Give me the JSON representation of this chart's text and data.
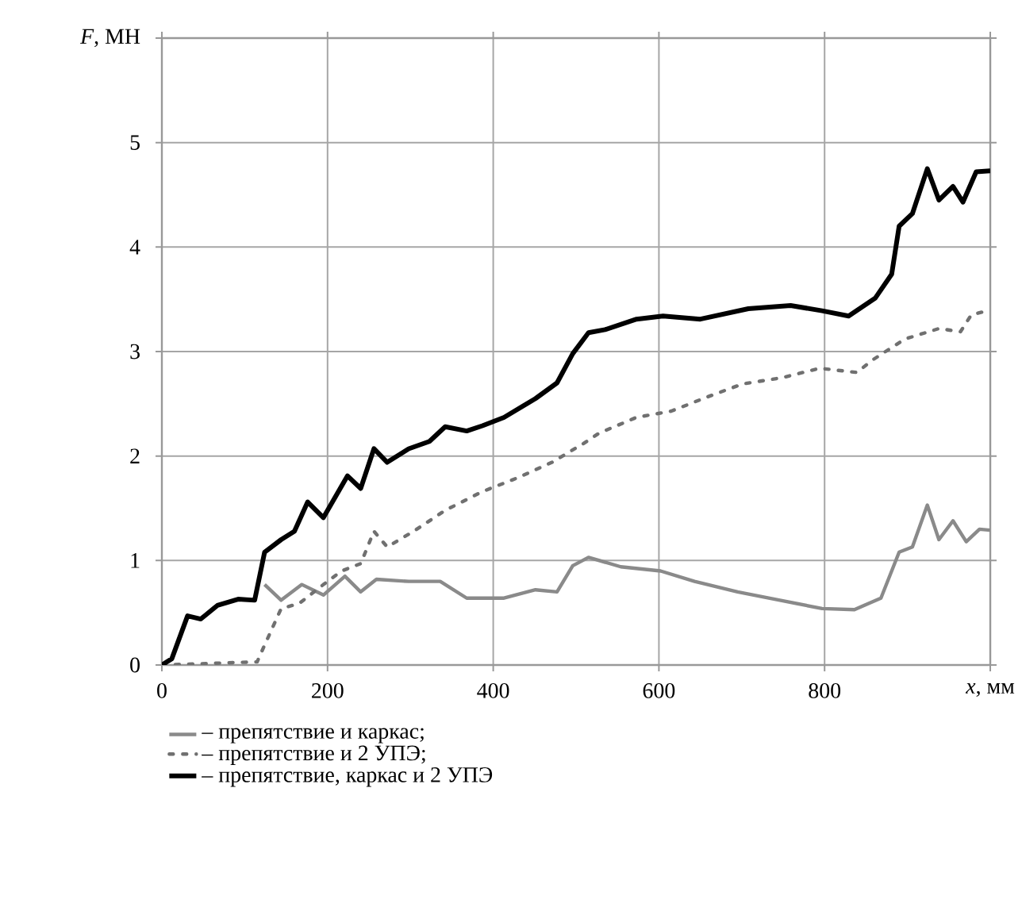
{
  "chart_data": {
    "type": "line",
    "xlim": [
      0,
      1000
    ],
    "ylim": [
      0,
      6
    ],
    "xticks": [
      0,
      200,
      400,
      600,
      800,
      {
        "value": 1000,
        "label": "*x*, мм"
      }
    ],
    "yticks": [
      0,
      1,
      2,
      3,
      4,
      5,
      {
        "value": 6,
        "label": "*F*, МН"
      }
    ],
    "grid": true,
    "legend": "bottom",
    "marker": "none",
    "series": [
      {
        "name": "– препятствие и каркас;",
        "color": "#8a8a8a",
        "line_style": "solid",
        "x": [
          124,
          144,
          169,
          195,
          221,
          240,
          259,
          298,
          336,
          368,
          413,
          451,
          477,
          496,
          515,
          554,
          602,
          643,
          695,
          746,
          797,
          836,
          868,
          890,
          906,
          924,
          938,
          955,
          971,
          987,
          1000
        ],
        "values": [
          0.77,
          0.62,
          0.77,
          0.67,
          0.85,
          0.7,
          0.82,
          0.8,
          0.8,
          0.64,
          0.64,
          0.72,
          0.7,
          0.95,
          1.03,
          0.94,
          0.9,
          0.8,
          0.7,
          0.62,
          0.54,
          0.53,
          0.64,
          1.08,
          1.13,
          1.53,
          1.2,
          1.38,
          1.18,
          1.3,
          1.29
        ]
      },
      {
        "name": "– препятствие и 2 УПЭ;",
        "color": "#707070",
        "line_style": "dotted",
        "x": [
          0,
          115,
          124,
          144,
          166,
          195,
          217,
          240,
          256,
          272,
          304,
          342,
          387,
          429,
          471,
          509,
          528,
          573,
          615,
          660,
          701,
          749,
          794,
          839,
          858,
          897,
          938,
          964,
          977,
          996
        ],
        "values": [
          0,
          0.03,
          0.19,
          0.54,
          0.59,
          0.77,
          0.9,
          0.97,
          1.28,
          1.13,
          1.28,
          1.48,
          1.66,
          1.79,
          1.94,
          2.12,
          2.22,
          2.37,
          2.43,
          2.57,
          2.69,
          2.75,
          2.84,
          2.8,
          2.92,
          3.12,
          3.22,
          3.19,
          3.35,
          3.39
        ]
      },
      {
        "name": "– препятствие, каркас и 2 УПЭ",
        "color": "#000000",
        "line_style": "solid",
        "x": [
          0,
          12,
          31,
          47,
          67,
          92,
          112,
          124,
          144,
          160,
          176,
          195,
          224,
          240,
          256,
          272,
          298,
          323,
          342,
          368,
          387,
          413,
          451,
          477,
          496,
          515,
          535,
          573,
          605,
          650,
          708,
          759,
          797,
          829,
          861,
          881,
          890,
          906,
          924,
          938,
          955,
          967,
          983,
          1000
        ],
        "values": [
          0,
          0.06,
          0.47,
          0.44,
          0.57,
          0.63,
          0.62,
          1.08,
          1.2,
          1.28,
          1.56,
          1.41,
          1.81,
          1.69,
          2.07,
          1.94,
          2.07,
          2.14,
          2.28,
          2.24,
          2.29,
          2.37,
          2.55,
          2.7,
          2.98,
          3.18,
          3.21,
          3.31,
          3.34,
          3.31,
          3.41,
          3.44,
          3.39,
          3.34,
          3.51,
          3.74,
          4.2,
          4.32,
          4.75,
          4.45,
          4.58,
          4.43,
          4.72,
          4.73
        ]
      }
    ]
  }
}
